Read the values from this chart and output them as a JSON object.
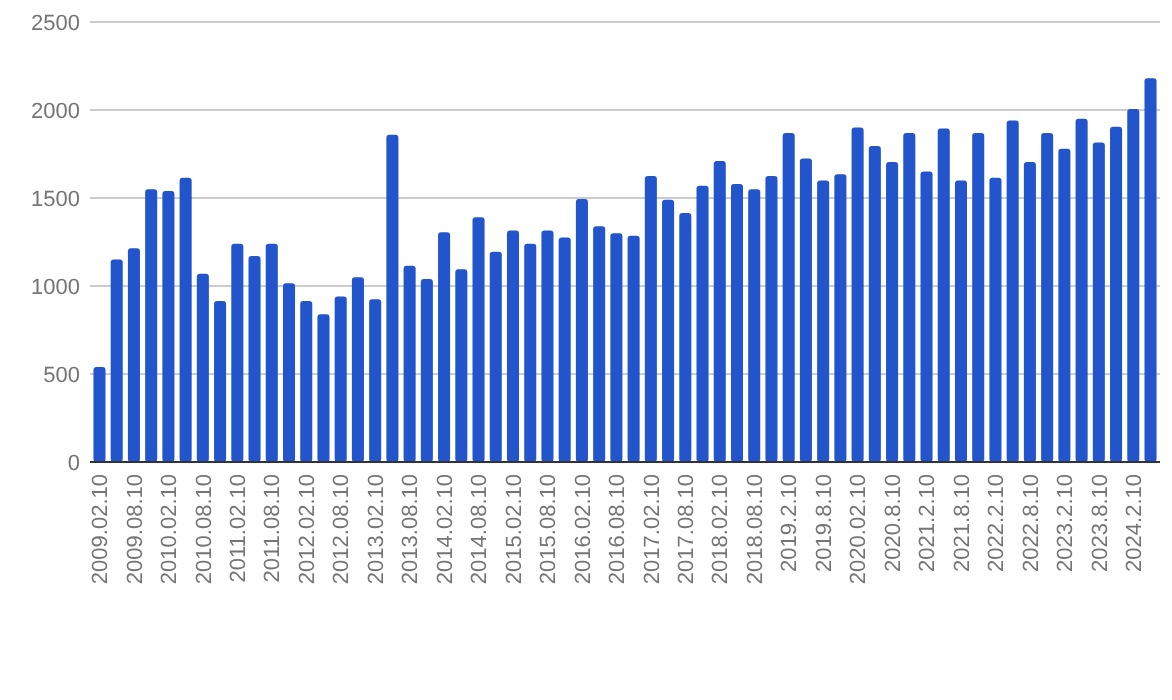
{
  "chart_data": {
    "type": "bar",
    "categories": [
      "2009.02.10",
      null,
      "2009.08.10",
      null,
      "2010.02.10",
      null,
      "2010.08.10",
      null,
      "2011.02.10",
      null,
      "2011.08.10",
      null,
      "2012.02.10",
      null,
      "2012.08.10",
      null,
      "2013.02.10",
      null,
      "2013.08.10",
      null,
      "2014.02.10",
      null,
      "2014.08.10",
      null,
      "2015.02.10",
      null,
      "2015.08.10",
      null,
      "2016.02.10",
      null,
      "2016.08.10",
      null,
      "2017.02.10",
      null,
      "2017.08.10",
      null,
      "2018.02.10",
      null,
      "2018.08.10",
      null,
      "2019.2.10",
      null,
      "2019.8.10",
      null,
      "2020.02.10",
      null,
      "2020.8.10",
      null,
      "2021.2.10",
      null,
      "2021.8.10",
      null,
      "2022.2.10",
      null,
      "2022.8.10",
      null,
      "2023.2.10",
      null,
      "2023.8.10",
      null,
      "2024.2.10",
      null
    ],
    "values": [
      540,
      1150,
      1215,
      1550,
      1540,
      1615,
      1070,
      915,
      1240,
      1170,
      1240,
      1015,
      915,
      840,
      940,
      1050,
      925,
      1860,
      1115,
      1040,
      1305,
      1095,
      1390,
      1195,
      1315,
      1240,
      1315,
      1275,
      1495,
      1340,
      1300,
      1285,
      1625,
      1490,
      1415,
      1570,
      1710,
      1580,
      1550,
      1625,
      1870,
      1725,
      1600,
      1635,
      1900,
      1795,
      1705,
      1870,
      1650,
      1895,
      1600,
      1870,
      1615,
      1940,
      1705,
      1870,
      1780,
      1950,
      1815,
      1905,
      2005,
      2180
    ],
    "color": "#2255cc",
    "ylim": [
      0,
      2500
    ],
    "yticks": [
      0,
      500,
      1000,
      1500,
      2000,
      2500
    ],
    "grid": "y"
  }
}
